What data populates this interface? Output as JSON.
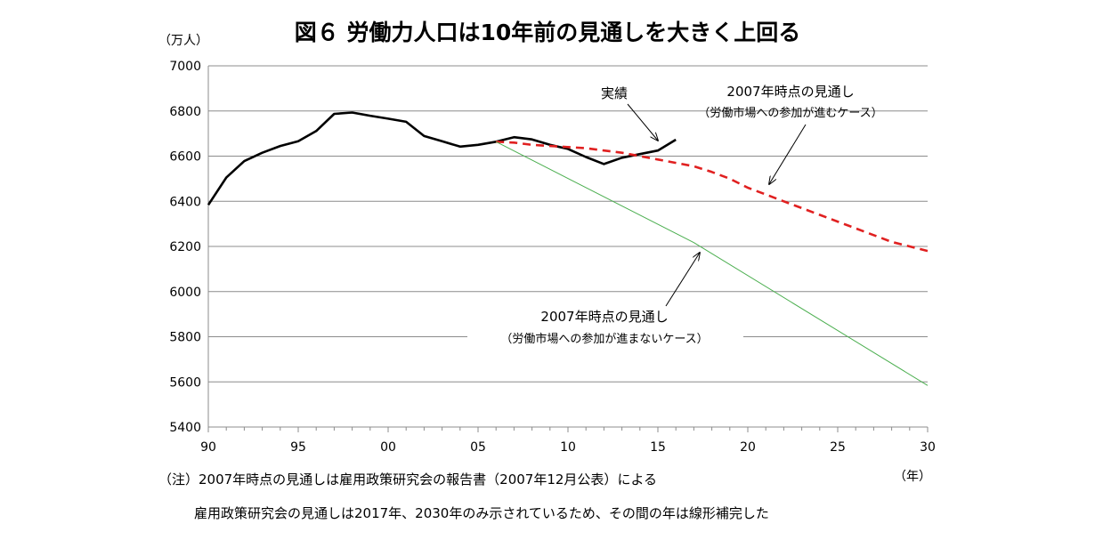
{
  "chart_data": {
    "type": "line",
    "title": "図６ 労働力人口は10年前の見通しを大きく上回る",
    "y_unit": "（万人）",
    "x_unit": "（年）",
    "xlim": [
      1990,
      2030
    ],
    "ylim": [
      5400,
      7000
    ],
    "y_ticks": [
      5400,
      5600,
      5800,
      6000,
      6200,
      6400,
      6600,
      6800,
      7000
    ],
    "x_ticks": [
      {
        "value": 1990,
        "label": "90"
      },
      {
        "value": 1995,
        "label": "95"
      },
      {
        "value": 2000,
        "label": "00"
      },
      {
        "value": 2005,
        "label": "05"
      },
      {
        "value": 2010,
        "label": "10"
      },
      {
        "value": 2015,
        "label": "15"
      },
      {
        "value": 2020,
        "label": "20"
      },
      {
        "value": 2025,
        "label": "25"
      },
      {
        "value": 2030,
        "label": "30"
      }
    ],
    "grid": "horizontal",
    "series": [
      {
        "name": "実績",
        "color": "#000000",
        "style": "solid-thick",
        "x": [
          1990,
          1991,
          1992,
          1993,
          1994,
          1995,
          1996,
          1997,
          1998,
          1999,
          2000,
          2001,
          2002,
          2003,
          2004,
          2005,
          2006,
          2007,
          2008,
          2009,
          2010,
          2011,
          2012,
          2013,
          2014,
          2015,
          2016
        ],
        "y": [
          6384,
          6505,
          6578,
          6615,
          6645,
          6666,
          6711,
          6787,
          6793,
          6779,
          6766,
          6752,
          6689,
          6666,
          6642,
          6650,
          6664,
          6684,
          6674,
          6650,
          6632,
          6596,
          6565,
          6593,
          6609,
          6625,
          6673
        ]
      },
      {
        "name": "2007年時点の見通し",
        "description": "（労働市場への参加が進むケース）",
        "color": "#e02020",
        "style": "dashed",
        "x": [
          2006,
          2007,
          2008,
          2009,
          2010,
          2011,
          2012,
          2013,
          2014,
          2015,
          2016,
          2017,
          2018,
          2019,
          2020,
          2021,
          2022,
          2023,
          2024,
          2025,
          2026,
          2027,
          2028,
          2029,
          2030
        ],
        "y": [
          6664,
          6660,
          6650,
          6645,
          6640,
          6635,
          6625,
          6615,
          6600,
          6585,
          6570,
          6555,
          6530,
          6500,
          6460,
          6430,
          6400,
          6370,
          6340,
          6310,
          6280,
          6250,
          6220,
          6200,
          6180
        ]
      },
      {
        "name": "2007年時点の見通し",
        "description": "（労働市場への参加が進まないケース）",
        "color": "#4caf50",
        "style": "solid-thin",
        "x": [
          2006,
          2017,
          2030
        ],
        "y": [
          6664,
          6217,
          5584
        ]
      }
    ],
    "annotations": [
      {
        "label": "実績",
        "target": [
          2015.2,
          6660
        ]
      },
      {
        "label": "2007年時点の見通し",
        "sub": "（労働市場への参加が進むケース）",
        "target": [
          2021,
          6460
        ]
      },
      {
        "label": "2007年時点の見通し",
        "sub": "（労働市場への参加が進まないケース）",
        "target": [
          2017.4,
          6195
        ]
      }
    ]
  },
  "notes": [
    "（注）2007年時点の見通しは雇用政策研究会の報告書（2007年12月公表）による",
    "雇用政策研究会の見通しは2017年、2030年のみ示されているため、その間の年は線形補完した"
  ]
}
